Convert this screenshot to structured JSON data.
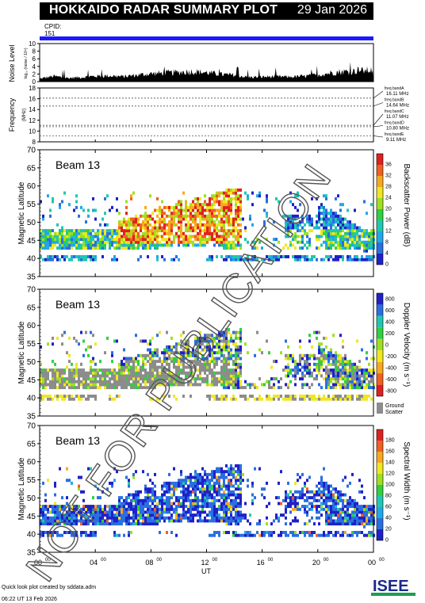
{
  "title": "HOKKAIDO RADAR SUMMARY PLOT",
  "date": "29 Jan 2026",
  "cpid_label": "CPID:",
  "cpid_value": "151",
  "footer": {
    "line1": "Quick look plot created by sddata.adm",
    "line2": "06:22 UT 13 Feb 2026"
  },
  "logo_text": "ISEE",
  "watermark": "NOT FOR PUBLICATION",
  "colors": {
    "cpid_bar": "#1a1aff",
    "ground_scatter": "#8c8c8c",
    "accent": "#2222cc"
  },
  "chart_data": [
    {
      "type": "area",
      "name": "noise-level",
      "ylabel": "Noise Level",
      "yunit": "log₁₀ (noise / 10⁴)",
      "yticks": [
        "0",
        "2",
        "4",
        "6",
        "8",
        "10"
      ],
      "ylim": [
        0,
        10
      ],
      "x_hours": [
        0,
        1,
        2,
        3,
        4,
        5,
        6,
        7,
        8,
        9,
        10,
        11,
        12,
        13,
        14,
        15,
        16,
        17,
        18,
        19,
        20,
        21,
        22,
        23,
        24
      ],
      "values": [
        0.8,
        1.5,
        1.0,
        1.2,
        1.5,
        1.6,
        1.4,
        1.8,
        2.2,
        2.4,
        2.6,
        2.8,
        2.5,
        2.0,
        1.8,
        1.2,
        1.3,
        1.4,
        1.3,
        1.5,
        1.8,
        2.5,
        2.8,
        3.0,
        3.2
      ]
    },
    {
      "type": "line",
      "name": "frequency",
      "ylabel": "Frequency",
      "yunit": "(MHz)",
      "yticks": [
        "8",
        "10",
        "12",
        "14",
        "16",
        "18"
      ],
      "ylim": [
        8,
        18
      ],
      "bands": [
        {
          "label": "freq bandA",
          "value_label": "16.11 MHz",
          "mhz": 16.11
        },
        {
          "label": "freq bandB",
          "value_label": "14.64 MHz",
          "mhz": 14.64
        },
        {
          "label": "freq bandC",
          "value_label": "11.07 MHz",
          "mhz": 11.07
        },
        {
          "label": "freq bandD",
          "value_label": "10.80 MHz",
          "mhz": 10.8
        },
        {
          "label": "freq bandE",
          "value_label": "9.11 MHz",
          "mhz": 9.11
        }
      ]
    },
    {
      "type": "heatmap",
      "name": "backscatter-power",
      "beam_label": "Beam 13",
      "ylabel": "Magnetic Latitude",
      "yticks": [
        "35",
        "40",
        "45",
        "50",
        "55",
        "60",
        "65",
        "70"
      ],
      "ylim": [
        35,
        70
      ],
      "colorbar_label": "Backscatter Power (dB)",
      "colorbar_ticks": [
        "0",
        "4",
        "8",
        "12",
        "16",
        "20",
        "24",
        "28",
        "32",
        "36"
      ],
      "colorbar_colors": [
        "#2020c8",
        "#2a6fe0",
        "#20a8e8",
        "#20c8b0",
        "#30d040",
        "#a0e020",
        "#f0e820",
        "#f8a820",
        "#f06020",
        "#e02020"
      ]
    },
    {
      "type": "heatmap",
      "name": "doppler-velocity",
      "beam_label": "Beam 13",
      "ylabel": "Magnetic Latitude",
      "yticks": [
        "35",
        "40",
        "45",
        "50",
        "55",
        "60",
        "65",
        "70"
      ],
      "ylim": [
        35,
        70
      ],
      "colorbar_label": "Doppler Velocity (m s⁻¹)",
      "colorbar_ticks": [
        "-800",
        "-600",
        "-400",
        "-200",
        "0",
        "200",
        "400",
        "600",
        "800"
      ],
      "colorbar_colors": [
        "#e02020",
        "#f06020",
        "#f8a820",
        "#f0e820",
        "#a0e020",
        "#30d040",
        "#20c8b0",
        "#2a6fe0",
        "#2020c8"
      ],
      "ground_scatter_label": "Ground",
      "ground_scatter_label2": "Scatter"
    },
    {
      "type": "heatmap",
      "name": "spectral-width",
      "beam_label": "Beam 13",
      "ylabel": "Magnetic Latitude",
      "yticks": [
        "35",
        "40",
        "45",
        "50",
        "55",
        "60",
        "65",
        "70"
      ],
      "ylim": [
        35,
        70
      ],
      "colorbar_label": "Spectral Width (m s⁻¹)",
      "colorbar_ticks": [
        "0",
        "20",
        "40",
        "60",
        "80",
        "100",
        "120",
        "140",
        "160",
        "180"
      ],
      "colorbar_colors": [
        "#2020c8",
        "#2a6fe0",
        "#20a8e8",
        "#20c8b0",
        "#30d040",
        "#a0e020",
        "#f0e820",
        "#f8a820",
        "#f06020",
        "#e02020"
      ]
    }
  ],
  "xaxis": {
    "label": "UT",
    "ticks": [
      {
        "h": 0,
        "main": "00",
        "sup": "00"
      },
      {
        "h": 4,
        "main": "04",
        "sup": "00"
      },
      {
        "h": 8,
        "main": "08",
        "sup": "00"
      },
      {
        "h": 12,
        "main": "12",
        "sup": "00"
      },
      {
        "h": 16,
        "main": "16",
        "sup": "00"
      },
      {
        "h": 20,
        "main": "20",
        "sup": "00"
      },
      {
        "h": 24,
        "main": "00",
        "sup": "00"
      }
    ]
  }
}
